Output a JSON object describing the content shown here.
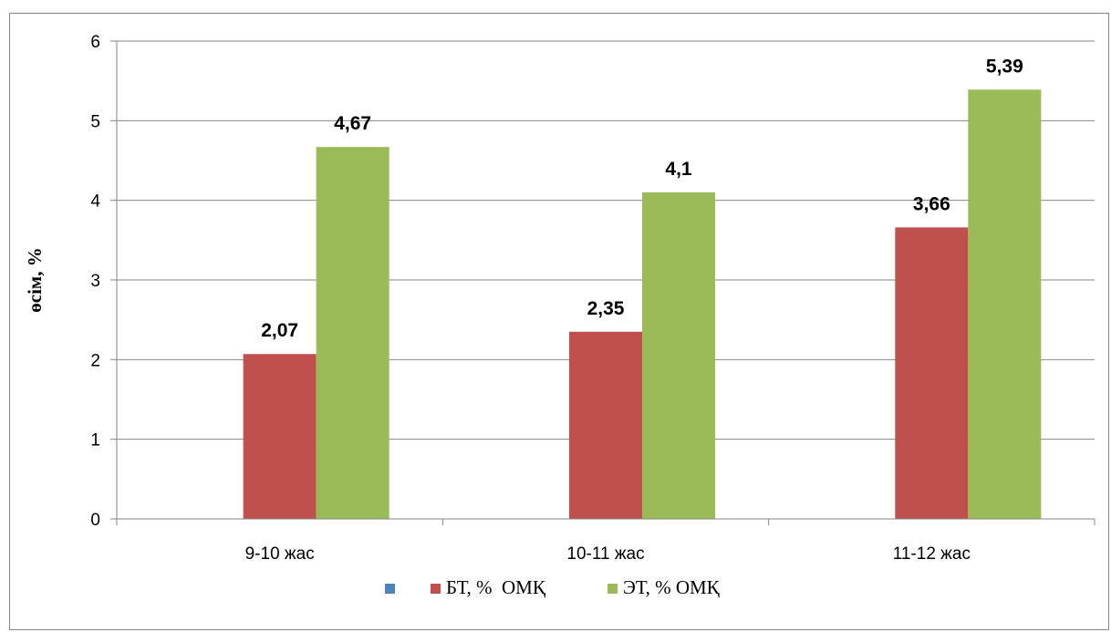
{
  "chart_data": {
    "type": "bar",
    "title": "",
    "xlabel": "",
    "ylabel": "өсім, %",
    "ylim": [
      0,
      6
    ],
    "yticks": [
      "0",
      "1",
      "2",
      "3",
      "4",
      "5",
      "6"
    ],
    "grid": true,
    "legend_position": "bottom",
    "categories": [
      "9-10 жас",
      "10-11 жас",
      "11-12 жас"
    ],
    "series": [
      {
        "name": "",
        "color": "#4F81BD",
        "values": [
          0,
          0,
          0
        ],
        "data_labels": [
          "",
          "",
          ""
        ]
      },
      {
        "name": "БТ, %  ОМҚ",
        "color": "#C0504D",
        "values": [
          2.07,
          2.35,
          3.66
        ],
        "data_labels": [
          "2,07",
          "2,35",
          "3,66"
        ]
      },
      {
        "name": "ЭТ, % ОМҚ",
        "color": "#9BBB59",
        "values": [
          4.67,
          4.1,
          5.39
        ],
        "data_labels": [
          "4,67",
          "4,1",
          "5,39"
        ]
      }
    ]
  }
}
